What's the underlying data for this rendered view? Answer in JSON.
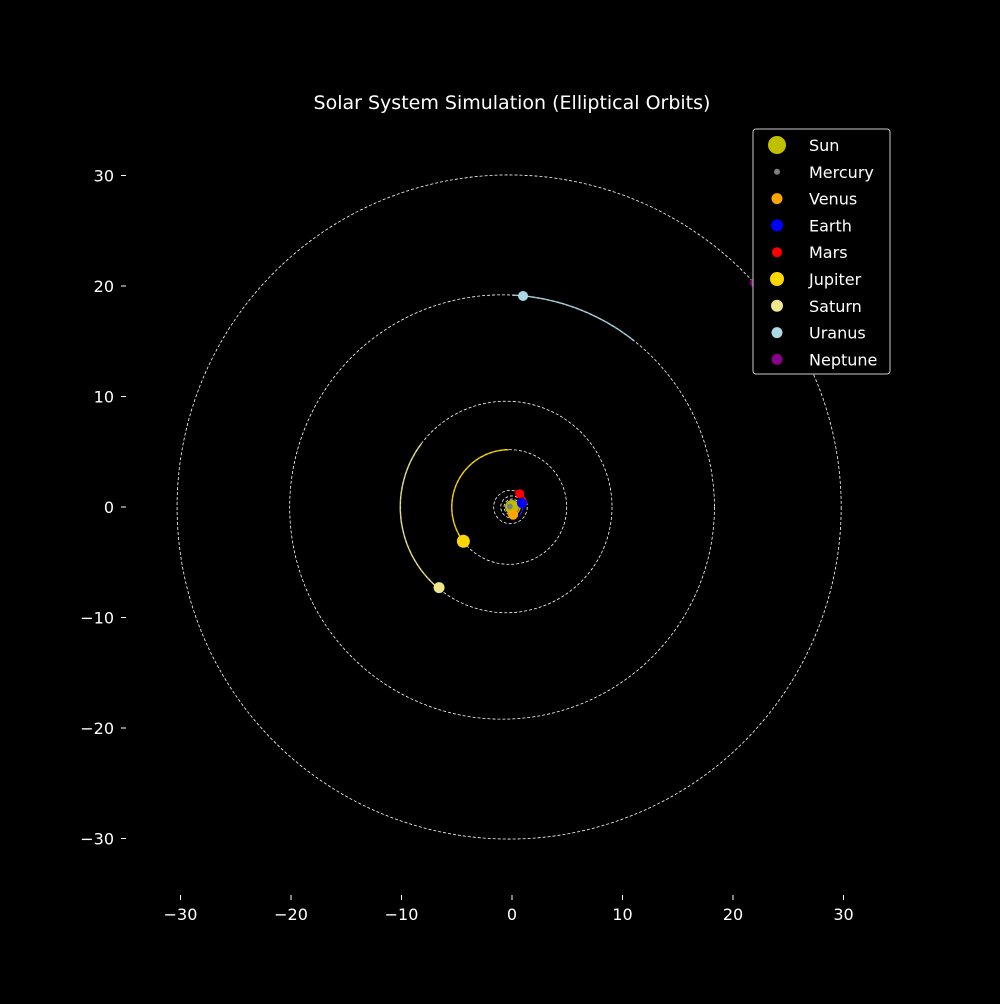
{
  "chart_data": {
    "type": "scatter",
    "title": "Solar System Simulation (Elliptical Orbits)",
    "xlabel": "",
    "ylabel": "",
    "xlim": [
      -35,
      35
    ],
    "ylim": [
      -35,
      35
    ],
    "xticks": [
      -30,
      -20,
      -10,
      0,
      10,
      20,
      30
    ],
    "yticks": [
      -30,
      -20,
      -10,
      0,
      10,
      20,
      30
    ],
    "xtick_labels": [
      "−30",
      "−20",
      "−10",
      "0",
      "10",
      "20",
      "30"
    ],
    "ytick_labels": [
      "−30",
      "−20",
      "−10",
      "0",
      "10",
      "20",
      "30"
    ],
    "grid": false,
    "legend_position": "top-right",
    "sun": {
      "name": "Sun",
      "color": "#bfbf00",
      "x": 0,
      "y": 0
    },
    "series": [
      {
        "name": "Mercury",
        "color": "#808080",
        "a": 0.39,
        "b": 0.38,
        "cx": -0.08,
        "x": -0.2,
        "y": 0.05,
        "trail": [
          0,
          1.6
        ]
      },
      {
        "name": "Venus",
        "color": "#ffa500",
        "a": 0.72,
        "b": 0.72,
        "cx": 0,
        "x": 0.1,
        "y": -0.7,
        "trail": [
          4.0,
          6.2
        ]
      },
      {
        "name": "Earth",
        "color": "#0000ff",
        "a": 1.0,
        "b": 1.0,
        "cx": -0.02,
        "x": 0.9,
        "y": 0.35,
        "trail": [
          4.8,
          6.6
        ]
      },
      {
        "name": "Mars",
        "color": "#ff0000",
        "a": 1.52,
        "b": 1.51,
        "cx": -0.14,
        "x": 0.7,
        "y": 1.2,
        "trail": [
          0.2,
          1.3
        ]
      },
      {
        "name": "Jupiter",
        "color": "#ffd700",
        "a": 5.2,
        "b": 5.19,
        "cx": -0.25,
        "x": -4.4,
        "y": -3.1,
        "trail": [
          1.58,
          3.8
        ]
      },
      {
        "name": "Saturn",
        "color": "#f0e68c",
        "a": 9.58,
        "b": 9.57,
        "cx": -0.53,
        "x": -6.6,
        "y": -7.3,
        "trail": [
          2.5,
          4.0
        ]
      },
      {
        "name": "Uranus",
        "color": "#add8e6",
        "a": 19.22,
        "b": 19.2,
        "cx": -0.9,
        "x": 1.0,
        "y": 19.1,
        "trail": [
          0.9,
          1.52
        ]
      },
      {
        "name": "Neptune",
        "color": "#8b008b",
        "a": 30.05,
        "b": 30.05,
        "cx": -0.26,
        "x": 22.0,
        "y": 20.3,
        "trail": [
          0.55,
          0.75
        ]
      }
    ]
  }
}
